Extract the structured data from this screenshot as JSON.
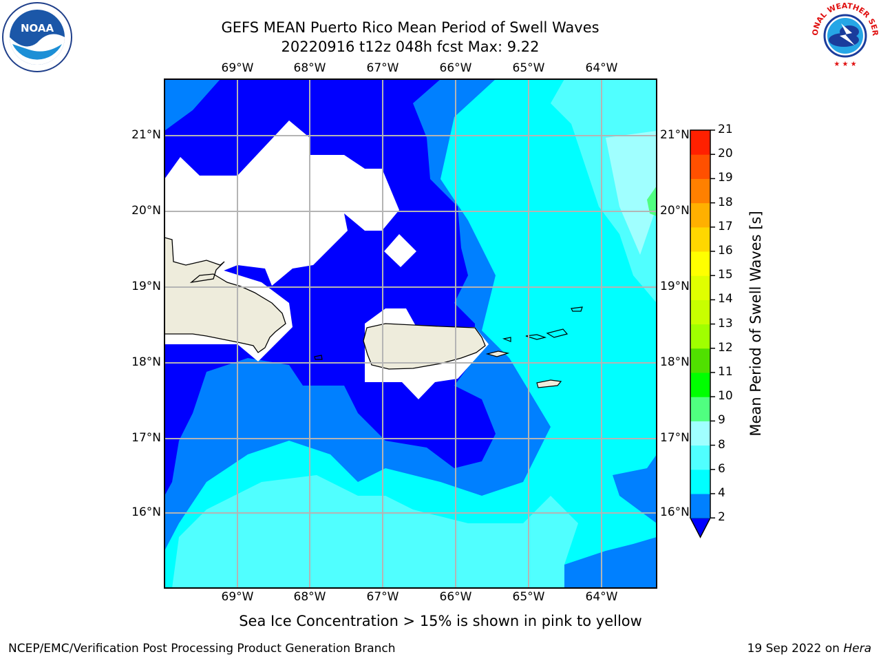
{
  "title": {
    "line1": "GEFS MEAN Puerto Rico Mean Period of Swell Waves",
    "line2": "20220916 t12z 048h fcst   Max: 9.22"
  },
  "map": {
    "lon_ticks": [
      "69°W",
      "68°W",
      "67°W",
      "66°W",
      "65°W",
      "64°W"
    ],
    "lat_ticks": [
      "21°N",
      "20°N",
      "19°N",
      "18°N",
      "17°N",
      "16°N"
    ],
    "land_color": "#eeecdc",
    "grid_color": "#b4b4b4"
  },
  "colorbar": {
    "title": "Mean Period of Swell Waves [s]",
    "levels": [
      "2",
      "4",
      "6",
      "8",
      "9",
      "10",
      "11",
      "12",
      "13",
      "14",
      "15",
      "16",
      "17",
      "18",
      "19",
      "20",
      "21"
    ],
    "colors": [
      "#0000ff",
      "#0080ff",
      "#00ffff",
      "#50ffff",
      "#a0ffff",
      "#50ff80",
      "#00ff00",
      "#50e000",
      "#a0ff00",
      "#c8ff00",
      "#e0ff00",
      "#ffff00",
      "#ffd700",
      "#ffb000",
      "#ff8000",
      "#ff5000",
      "#ff2000",
      "#ff0000"
    ]
  },
  "caption": "Sea Ice Concentration > 15% is shown in pink to yellow",
  "footer": {
    "left": "NCEP/EMC/Verification Post Processing Product Generation Branch",
    "date": "19 Sep 2022 on",
    "host": "Hera"
  },
  "logos": {
    "noaa_text": "NOAA",
    "nws_text": "NATIONAL WEATHER SERVICE"
  }
}
